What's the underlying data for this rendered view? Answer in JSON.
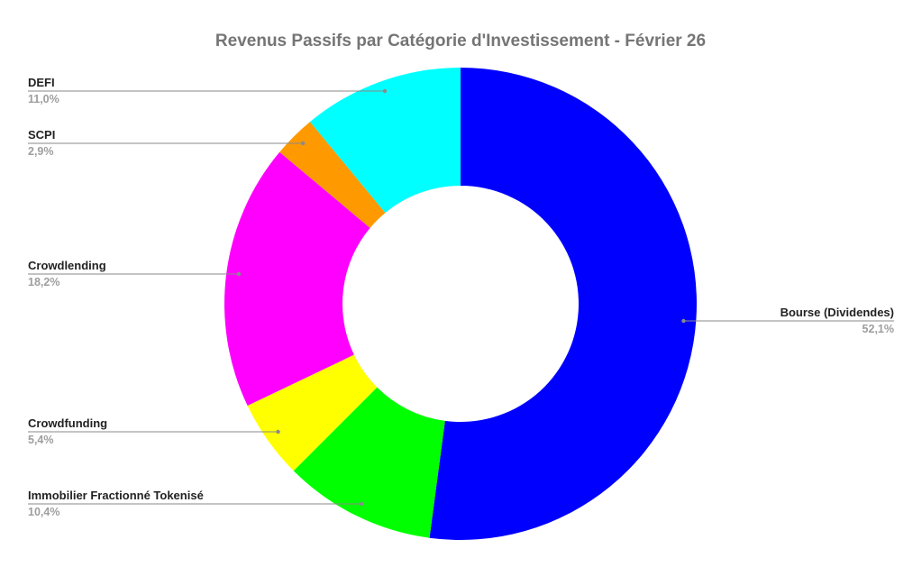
{
  "chart_data": {
    "type": "pie",
    "title": "Revenus Passifs par Catégorie d'Investissement - Février 26",
    "donut": true,
    "legend": "labels beside slices with leader lines",
    "slices": [
      {
        "label": "Bourse (Dividendes)",
        "value": 52.1,
        "value_text": "52,1%",
        "color": "#0000ff"
      },
      {
        "label": "Immobilier Fractionné Tokenisé",
        "value": 10.4,
        "value_text": "10,4%",
        "color": "#00ff00"
      },
      {
        "label": "Crowdfunding",
        "value": 5.4,
        "value_text": "5,4%",
        "color": "#ffff00"
      },
      {
        "label": "Crowdlending",
        "value": 18.2,
        "value_text": "18,2%",
        "color": "#ff00ff"
      },
      {
        "label": "SCPI",
        "value": 2.9,
        "value_text": "2,9%",
        "color": "#ff9900"
      },
      {
        "label": "DEFI",
        "value": 11.0,
        "value_text": "11,0%",
        "color": "#00ffff"
      }
    ]
  }
}
